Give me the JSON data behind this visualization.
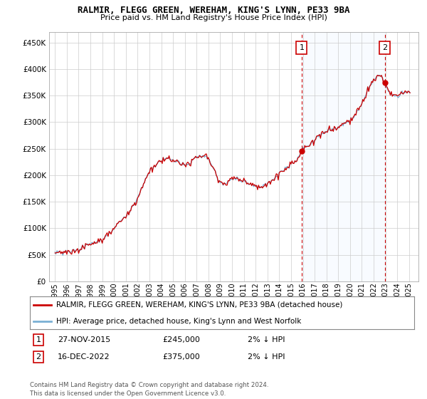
{
  "title": "RALMIR, FLEGG GREEN, WEREHAM, KING'S LYNN, PE33 9BA",
  "subtitle": "Price paid vs. HM Land Registry's House Price Index (HPI)",
  "legend_line1": "RALMIR, FLEGG GREEN, WEREHAM, KING'S LYNN, PE33 9BA (detached house)",
  "legend_line2": "HPI: Average price, detached house, King's Lynn and West Norfolk",
  "annotation1_label": "1",
  "annotation1_date": "27-NOV-2015",
  "annotation1_price": "£245,000",
  "annotation1_hpi": "2% ↓ HPI",
  "annotation2_label": "2",
  "annotation2_date": "16-DEC-2022",
  "annotation2_price": "£375,000",
  "annotation2_hpi": "2% ↓ HPI",
  "footer": "Contains HM Land Registry data © Crown copyright and database right 2024.\nThis data is licensed under the Open Government Licence v3.0.",
  "price_color": "#cc0000",
  "hpi_color": "#7ab0d4",
  "shade_color": "#ddeeff",
  "annotation_vline_color": "#cc0000",
  "background_color": "#ffffff",
  "grid_color": "#cccccc",
  "ylim": [
    0,
    470000
  ],
  "yticks": [
    0,
    50000,
    100000,
    150000,
    200000,
    250000,
    300000,
    350000,
    400000,
    450000
  ],
  "purchase1_year": 2015.9,
  "purchase1_price": 245000,
  "purchase2_year": 2022.96,
  "purchase2_price": 375000,
  "xmin": 1994.5,
  "xmax": 2025.8
}
